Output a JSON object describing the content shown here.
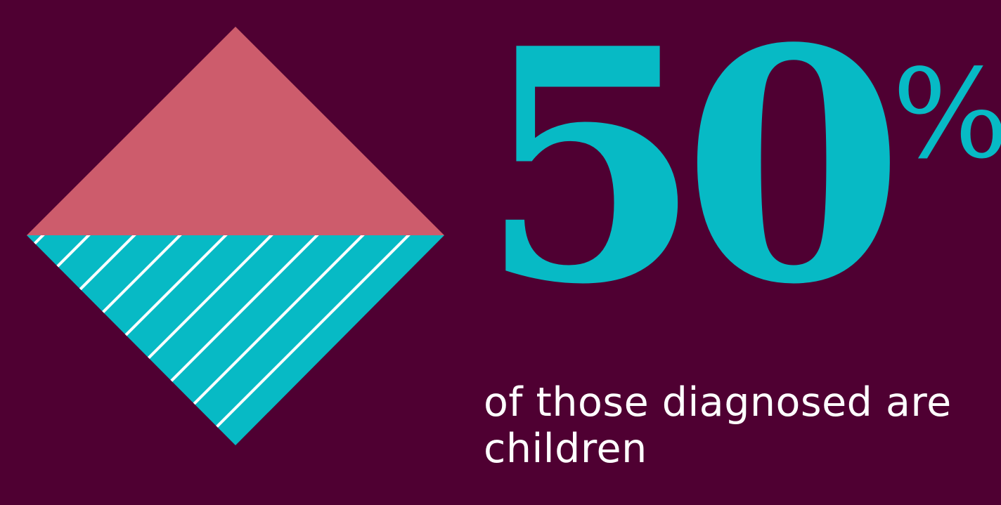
{
  "stat": {
    "value": "50",
    "unit": "%",
    "caption": "of those diagnosed are children"
  },
  "graphic": {
    "top_color": "#cd5c6c",
    "bottom_color": "#07bac5",
    "stripe_color": "#ffffff",
    "background": "#4f0032",
    "fill_fraction": 0.5
  }
}
